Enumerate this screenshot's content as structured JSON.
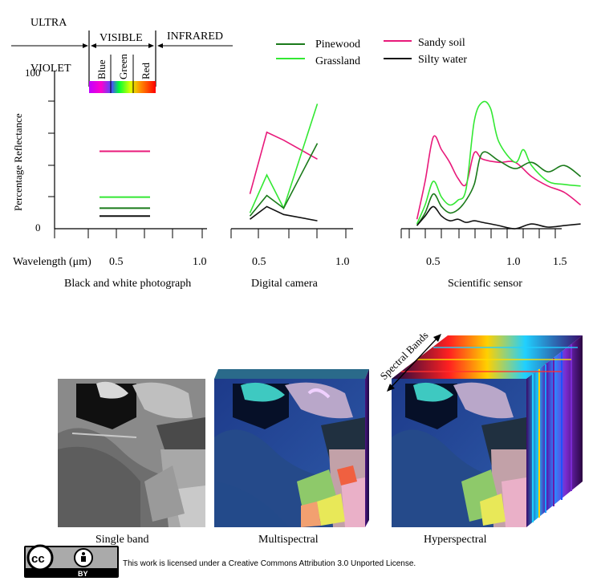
{
  "region_labels": {
    "ultra": "ULTRA",
    "violet": "VIOLET",
    "visible": "VISIBLE",
    "infrared": "INFRARED"
  },
  "band_labels": [
    "Blue",
    "Green",
    "Red"
  ],
  "legend": [
    {
      "name": "Pinewood",
      "color": "#1a7a1a"
    },
    {
      "name": "Grassland",
      "color": "#33e833"
    },
    {
      "name": "Sandy soil",
      "color": "#e8197a"
    },
    {
      "name": "Silty water",
      "color": "#111111"
    }
  ],
  "y_axis": {
    "label": "Percentage Reflectance",
    "max_label": "100",
    "min_label": "0"
  },
  "x_axis": {
    "label": "Wavelength (μm)"
  },
  "panels": [
    {
      "caption": "Black and white photograph",
      "ticks": [
        "0.5",
        "1.0"
      ]
    },
    {
      "caption": "Digital camera",
      "ticks": [
        "0.5",
        "1.0"
      ]
    },
    {
      "caption": "Scientific sensor",
      "ticks": [
        "0.5",
        "1.0",
        "1.5"
      ]
    }
  ],
  "chart_data": [
    {
      "type": "line",
      "title": "Black and white photograph",
      "xlabel": "Wavelength (μm)",
      "ylabel": "Percentage Reflectance",
      "ylim": [
        0,
        100
      ],
      "series": [
        {
          "name": "Sandy soil",
          "x": [
            0.4,
            0.7
          ],
          "y": [
            49,
            49
          ]
        },
        {
          "name": "Grassland",
          "x": [
            0.4,
            0.7
          ],
          "y": [
            20,
            20
          ]
        },
        {
          "name": "Pinewood",
          "x": [
            0.4,
            0.7
          ],
          "y": [
            13,
            13
          ]
        },
        {
          "name": "Silty water",
          "x": [
            0.4,
            0.7
          ],
          "y": [
            8,
            8
          ]
        }
      ]
    },
    {
      "type": "line",
      "title": "Digital camera",
      "xlabel": "Wavelength (μm)",
      "ylabel": "Percentage Reflectance",
      "ylim": [
        0,
        100
      ],
      "series": [
        {
          "name": "Sandy soil",
          "x": [
            0.45,
            0.55,
            0.65,
            0.85
          ],
          "y": [
            22,
            61,
            56,
            44
          ]
        },
        {
          "name": "Grassland",
          "x": [
            0.45,
            0.55,
            0.65,
            0.85
          ],
          "y": [
            10,
            34,
            13,
            79
          ]
        },
        {
          "name": "Pinewood",
          "x": [
            0.45,
            0.55,
            0.65,
            0.85
          ],
          "y": [
            8,
            21,
            13,
            54
          ]
        },
        {
          "name": "Silty water",
          "x": [
            0.45,
            0.55,
            0.65,
            0.85
          ],
          "y": [
            6,
            14,
            9,
            5
          ]
        }
      ]
    },
    {
      "type": "line",
      "title": "Scientific sensor",
      "xlabel": "Wavelength (μm)",
      "ylabel": "Percentage Reflectance",
      "ylim": [
        0,
        100
      ],
      "series": [
        {
          "name": "Sandy soil",
          "x": [
            0.4,
            0.45,
            0.5,
            0.55,
            0.6,
            0.65,
            0.7,
            0.75,
            0.8,
            0.9,
            1.0,
            1.1,
            1.2,
            1.3,
            1.4
          ],
          "y": [
            6,
            30,
            58,
            50,
            42,
            32,
            28,
            48,
            44,
            42,
            42,
            33,
            27,
            23,
            15
          ]
        },
        {
          "name": "Grassland",
          "x": [
            0.4,
            0.45,
            0.5,
            0.55,
            0.6,
            0.65,
            0.7,
            0.75,
            0.8,
            0.85,
            0.9,
            1.0,
            1.05,
            1.1,
            1.2,
            1.3,
            1.4
          ],
          "y": [
            3,
            15,
            30,
            20,
            15,
            18,
            25,
            68,
            80,
            76,
            55,
            42,
            50,
            40,
            30,
            28,
            27
          ]
        },
        {
          "name": "Pinewood",
          "x": [
            0.4,
            0.45,
            0.5,
            0.55,
            0.6,
            0.65,
            0.7,
            0.75,
            0.8,
            0.9,
            1.0,
            1.1,
            1.2,
            1.3,
            1.4
          ],
          "y": [
            2,
            10,
            22,
            14,
            10,
            12,
            18,
            28,
            48,
            43,
            38,
            42,
            36,
            40,
            33
          ]
        },
        {
          "name": "Silty water",
          "x": [
            0.4,
            0.45,
            0.5,
            0.55,
            0.6,
            0.65,
            0.7,
            0.75,
            0.8,
            0.9,
            1.0,
            1.1,
            1.2,
            1.3,
            1.4
          ],
          "y": [
            2,
            8,
            14,
            8,
            5,
            6,
            4,
            5,
            4,
            2,
            0,
            3,
            1,
            2,
            3
          ]
        }
      ]
    }
  ],
  "image_labels": {
    "single": "Single band",
    "multi": "Multispectral",
    "hyper": "Hyperspectral",
    "spectral_bands": "Spectral Bands"
  },
  "license": {
    "text": "This work is licensed under a Creative Commons Attribution 3.0 Unported License.",
    "badge_cc": "cc",
    "badge_by": "BY"
  }
}
